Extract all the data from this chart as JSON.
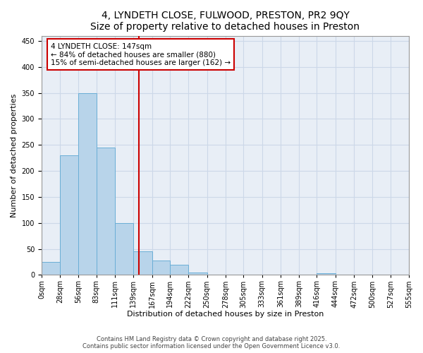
{
  "title_line1": "4, LYNDETH CLOSE, FULWOOD, PRESTON, PR2 9QY",
  "title_line2": "Size of property relative to detached houses in Preston",
  "xlabel": "Distribution of detached houses by size in Preston",
  "ylabel": "Number of detached properties",
  "bar_color": "#b8d4ea",
  "bar_edge_color": "#6aaed6",
  "grid_color": "#ccd8e8",
  "background_color": "#e8eef6",
  "annotation_box_color": "#cc0000",
  "vline_color": "#cc0000",
  "bin_edges": [
    0,
    28,
    56,
    83,
    111,
    139,
    167,
    194,
    222,
    250,
    278,
    305,
    333,
    361,
    389,
    416,
    444,
    472,
    500,
    527,
    555
  ],
  "bin_labels": [
    "0sqm",
    "28sqm",
    "56sqm",
    "83sqm",
    "111sqm",
    "139sqm",
    "167sqm",
    "194sqm",
    "222sqm",
    "250sqm",
    "278sqm",
    "305sqm",
    "333sqm",
    "361sqm",
    "389sqm",
    "416sqm",
    "444sqm",
    "472sqm",
    "500sqm",
    "527sqm",
    "555sqm"
  ],
  "bar_heights": [
    25,
    230,
    350,
    245,
    100,
    45,
    27,
    20,
    5,
    0,
    0,
    0,
    0,
    0,
    0,
    3,
    0,
    0,
    0,
    0
  ],
  "property_size": 147,
  "property_label": "4 LYNDETH CLOSE: 147sqm",
  "annotation_line2": "← 84% of detached houses are smaller (880)",
  "annotation_line3": "15% of semi-detached houses are larger (162) →",
  "ylim": [
    0,
    460
  ],
  "yticks": [
    0,
    50,
    100,
    150,
    200,
    250,
    300,
    350,
    400,
    450
  ],
  "footer_line1": "Contains HM Land Registry data © Crown copyright and database right 2025.",
  "footer_line2": "Contains public sector information licensed under the Open Government Licence v3.0.",
  "title_fontsize": 10,
  "axis_label_fontsize": 8,
  "tick_fontsize": 7,
  "annotation_fontsize": 7.5,
  "footer_fontsize": 6
}
